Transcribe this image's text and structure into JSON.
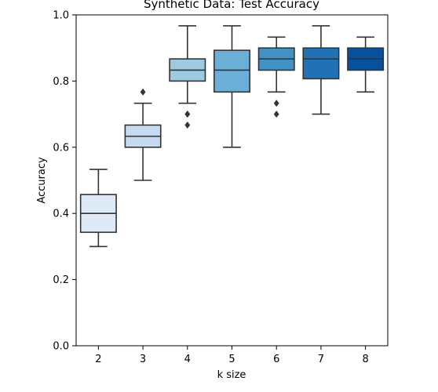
{
  "chart_data": {
    "type": "box",
    "title": "Synthetic Data: Test Accuracy",
    "xlabel": "k size",
    "ylabel": "Accuracy",
    "ylim": [
      0.0,
      1.0
    ],
    "yticks": [
      "0.0",
      "0.2",
      "0.4",
      "0.6",
      "0.8",
      "1.0"
    ],
    "grid": false,
    "categories": [
      "2",
      "3",
      "4",
      "5",
      "6",
      "7",
      "8"
    ],
    "boxes": [
      {
        "category": "2",
        "whisker_low": 0.3,
        "q1": 0.343,
        "median": 0.4,
        "q3": 0.457,
        "whisker_high": 0.533,
        "outliers": [],
        "color": "#deebf7"
      },
      {
        "category": "3",
        "whisker_low": 0.5,
        "q1": 0.6,
        "median": 0.633,
        "q3": 0.667,
        "whisker_high": 0.733,
        "outliers": [
          0.767
        ],
        "color": "#c6dbef"
      },
      {
        "category": "4",
        "whisker_low": 0.733,
        "q1": 0.8,
        "median": 0.833,
        "q3": 0.867,
        "whisker_high": 0.967,
        "outliers": [
          0.7,
          0.7,
          0.667
        ],
        "color": "#9ecae1"
      },
      {
        "category": "5",
        "whisker_low": 0.6,
        "q1": 0.767,
        "median": 0.833,
        "q3": 0.893,
        "whisker_high": 0.967,
        "outliers": [],
        "color": "#6baed6"
      },
      {
        "category": "6",
        "whisker_low": 0.767,
        "q1": 0.833,
        "median": 0.867,
        "q3": 0.9,
        "whisker_high": 0.933,
        "outliers": [
          0.733,
          0.7
        ],
        "color": "#4292c6"
      },
      {
        "category": "7",
        "whisker_low": 0.7,
        "q1": 0.807,
        "median": 0.867,
        "q3": 0.9,
        "whisker_high": 0.967,
        "outliers": [],
        "color": "#2171b5"
      },
      {
        "category": "8",
        "whisker_low": 0.767,
        "q1": 0.833,
        "median": 0.867,
        "q3": 0.9,
        "whisker_high": 0.933,
        "outliers": [],
        "color": "#08519c"
      }
    ]
  }
}
